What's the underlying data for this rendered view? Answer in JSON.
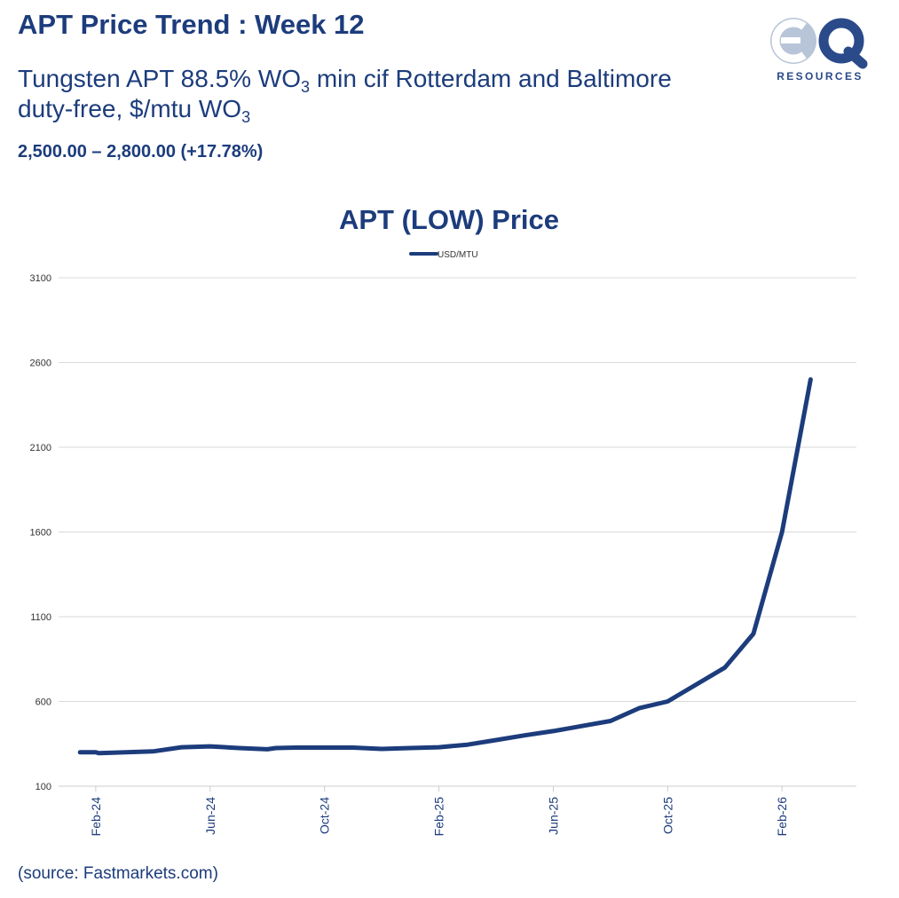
{
  "header": {
    "title": "APT Price Trend : Week 12",
    "subtitle_part1": "Tungsten APT 88.5% WO",
    "subtitle_sub1": "3",
    "subtitle_part2": " min cif Rotterdam and Baltimore duty-free, $/mtu WO",
    "subtitle_sub2": "3",
    "price_range": "2,500.00 – 2,800.00 (+17.78%)"
  },
  "logo": {
    "mark": "eQ",
    "text": "RESOURCES",
    "colors": {
      "dark": "#2a4a8a",
      "light": "#b8c4d8"
    }
  },
  "footer": {
    "source": "(source: Fastmarkets.com)"
  },
  "colors": {
    "line": "#1c3c7c",
    "grid": "#d9d9d9",
    "text": "#1c3c7c"
  },
  "chart_data": {
    "type": "line",
    "title": "APT (LOW) Price",
    "legend": "USD/MTU",
    "legend_position": "top-center",
    "xlabel": "",
    "ylabel": "",
    "ylim": [
      100,
      3100
    ],
    "yticks": [
      100,
      600,
      1100,
      1600,
      2100,
      2600,
      3100
    ],
    "grid": true,
    "xlim": [
      -1.3,
      26.6
    ],
    "xticks": [
      {
        "label": "Feb-24",
        "x": 0
      },
      {
        "label": "Jun-24",
        "x": 4
      },
      {
        "label": "Oct-24",
        "x": 8
      },
      {
        "label": "Feb-25",
        "x": 12
      },
      {
        "label": "Jun-25",
        "x": 16
      },
      {
        "label": "Oct-25",
        "x": 20
      },
      {
        "label": "Feb-26",
        "x": 24
      }
    ],
    "series": [
      {
        "name": "USD/MTU",
        "x": [
          -0.55,
          0,
          0.1,
          2,
          3,
          4,
          5,
          6,
          6.3,
          7,
          8,
          9,
          10,
          11,
          12,
          13,
          14,
          15,
          16,
          17,
          18,
          19,
          20,
          21,
          22,
          23,
          24,
          25
        ],
        "values": [
          300,
          300,
          295,
          305,
          330,
          335,
          325,
          318,
          325,
          328,
          328,
          328,
          320,
          325,
          330,
          345,
          372,
          400,
          425,
          455,
          485,
          560,
          600,
          700,
          800,
          1000,
          1600,
          2500
        ]
      }
    ]
  }
}
